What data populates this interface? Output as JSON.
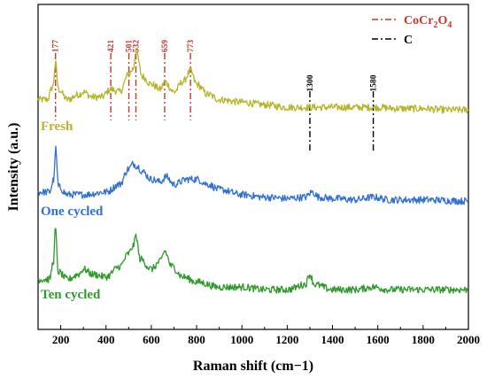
{
  "chart_data": {
    "type": "line",
    "title": "",
    "xlabel": "Raman shift (cm−1)",
    "ylabel": "Intensity (a.u.)",
    "xlim": [
      100,
      2000
    ],
    "x_ticks": [
      200,
      400,
      600,
      800,
      1000,
      1200,
      1400,
      1600,
      1800,
      2000
    ],
    "y_ticks_shown": false,
    "grid": false,
    "legend": {
      "placement": "top-right",
      "entries": [
        {
          "label": "CoCr2O4",
          "text_main": "CoCr",
          "sub1": "2",
          "mid": "O",
          "sub2": "4",
          "color": "#c0392b",
          "style": "dash-dot"
        },
        {
          "label": "C",
          "color": "#000000",
          "style": "dash-dot"
        }
      ]
    },
    "reference_lines": [
      {
        "x": 177,
        "label": "177",
        "group": "CoCr2O4",
        "color": "#c0392b"
      },
      {
        "x": 421,
        "label": "421",
        "group": "CoCr2O4",
        "color": "#c0392b"
      },
      {
        "x": 501,
        "label": "501",
        "group": "CoCr2O4",
        "color": "#c0392b"
      },
      {
        "x": 532,
        "label": "532",
        "group": "CoCr2O4",
        "color": "#c0392b"
      },
      {
        "x": 659,
        "label": "659",
        "group": "CoCr2O4",
        "color": "#c0392b"
      },
      {
        "x": 773,
        "label": "773",
        "group": "CoCr2O4",
        "color": "#c0392b"
      },
      {
        "x": 1300,
        "label": "1300",
        "group": "C",
        "color": "#000000"
      },
      {
        "x": 1580,
        "label": "1580",
        "group": "C",
        "color": "#000000"
      }
    ],
    "series": [
      {
        "name": "Fresh",
        "color": "#b5b52a",
        "offset": 0.72,
        "x": [
          100,
          140,
          165,
          177,
          190,
          230,
          280,
          300,
          340,
          380,
          421,
          460,
          501,
          520,
          532,
          560,
          600,
          640,
          659,
          700,
          740,
          773,
          800,
          850,
          900,
          1000,
          1100,
          1200,
          1300,
          1400,
          1500,
          1580,
          1700,
          1800,
          1900,
          2000
        ],
        "y": [
          0.03,
          0.03,
          0.08,
          0.17,
          0.07,
          0.03,
          0.05,
          0.06,
          0.04,
          0.04,
          0.07,
          0.06,
          0.13,
          0.15,
          0.22,
          0.12,
          0.09,
          0.07,
          0.1,
          0.06,
          0.1,
          0.14,
          0.09,
          0.05,
          0.03,
          0.02,
          0.01,
          0.0,
          0.0,
          0.0,
          0.0,
          0.0,
          -0.005,
          -0.005,
          -0.01,
          -0.01
        ]
      },
      {
        "name": "One cycled",
        "color": "#2f6fd6",
        "offset": 0.36,
        "x": [
          100,
          150,
          170,
          177,
          190,
          230,
          300,
          400,
          460,
          500,
          520,
          540,
          560,
          600,
          640,
          665,
          700,
          760,
          800,
          850,
          900,
          1000,
          1100,
          1200,
          1280,
          1310,
          1340,
          1400,
          1500,
          1580,
          1650,
          1800,
          2000
        ],
        "y": [
          0.03,
          0.03,
          0.08,
          0.2,
          0.05,
          0.02,
          0.02,
          0.03,
          0.06,
          0.12,
          0.14,
          0.13,
          0.11,
          0.08,
          0.07,
          0.09,
          0.06,
          0.08,
          0.08,
          0.06,
          0.04,
          0.02,
          0.01,
          0.005,
          0.01,
          0.03,
          0.01,
          0.005,
          0.0,
          0.01,
          0.0,
          0.0,
          -0.005
        ]
      },
      {
        "name": "Ten cycled",
        "color": "#2e9a2a",
        "offset": 0.0,
        "x": [
          100,
          150,
          168,
          177,
          188,
          230,
          280,
          300,
          340,
          400,
          460,
          500,
          520,
          532,
          550,
          600,
          640,
          659,
          690,
          740,
          800,
          900,
          1000,
          1100,
          1200,
          1280,
          1300,
          1320,
          1400,
          1500,
          1580,
          1650,
          1800,
          2000
        ],
        "y": [
          0.05,
          0.05,
          0.12,
          0.25,
          0.08,
          0.05,
          0.07,
          0.09,
          0.07,
          0.06,
          0.1,
          0.15,
          0.18,
          0.22,
          0.13,
          0.09,
          0.12,
          0.16,
          0.1,
          0.06,
          0.04,
          0.02,
          0.02,
          0.01,
          0.01,
          0.03,
          0.07,
          0.03,
          0.01,
          0.01,
          0.02,
          0.01,
          0.01,
          0.01
        ]
      }
    ]
  }
}
